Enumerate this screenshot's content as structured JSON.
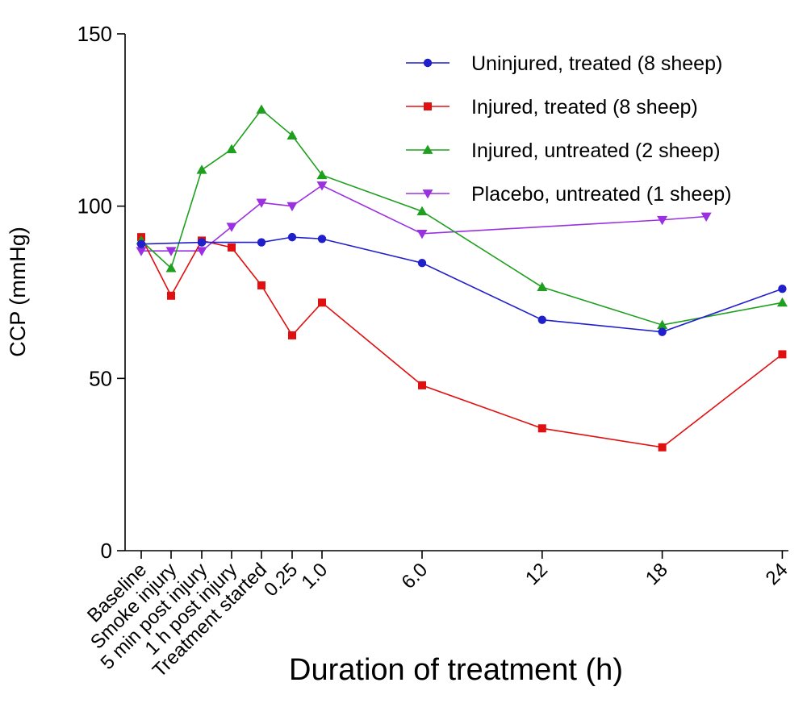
{
  "chart_data": {
    "type": "line",
    "xlabel": "Duration of treatment (h)",
    "ylabel": "CCP (mmHg)",
    "ylim": [
      0,
      150
    ],
    "yticks": [
      0,
      50,
      100,
      150
    ],
    "categories": [
      "Baseline",
      "Smoke injury",
      "5 min post injury",
      "1 h post injury",
      "Treatment started",
      "0.25",
      "1.0",
      "6.0",
      "12",
      "18",
      "24"
    ],
    "legend_position": "top-right",
    "grid": false,
    "series": [
      {
        "name": "Uninjured, treated (8 sheep)",
        "color": "#1f1fcc",
        "marker": "circle",
        "points": [
          {
            "x": "Baseline",
            "y": 89
          },
          {
            "x": "5 min post injury",
            "y": 89.5
          },
          {
            "x": "Treatment started",
            "y": 89.5
          },
          {
            "x": "0.25",
            "y": 91
          },
          {
            "x": "1.0",
            "y": 90.5
          },
          {
            "x": "6.0",
            "y": 83.5
          },
          {
            "x": "12",
            "y": 67
          },
          {
            "x": "18",
            "y": 63.5
          },
          {
            "x": "24",
            "y": 76
          }
        ]
      },
      {
        "name": "Injured, treated (8 sheep)",
        "color": "#e01010",
        "marker": "square",
        "points": [
          {
            "x": "Baseline",
            "y": 91
          },
          {
            "x": "Smoke injury",
            "y": 74
          },
          {
            "x": "5 min post injury",
            "y": 90
          },
          {
            "x": "1 h post injury",
            "y": 88
          },
          {
            "x": "Treatment started",
            "y": 77
          },
          {
            "x": "0.25",
            "y": 62.5
          },
          {
            "x": "1.0",
            "y": 72
          },
          {
            "x": "6.0",
            "y": 48
          },
          {
            "x": "12",
            "y": 35.5
          },
          {
            "x": "18",
            "y": 30
          },
          {
            "x": "24",
            "y": 57
          }
        ]
      },
      {
        "name": "Injured, untreated (2 sheep)",
        "color": "#1ea01e",
        "marker": "triangle-up",
        "points": [
          {
            "x": "Baseline",
            "y": 90
          },
          {
            "x": "Smoke injury",
            "y": 82
          },
          {
            "x": "5 min post injury",
            "y": 110.5
          },
          {
            "x": "1 h post injury",
            "y": 116.5
          },
          {
            "x": "Treatment started",
            "y": 128
          },
          {
            "x": "0.25",
            "y": 120.5
          },
          {
            "x": "1.0",
            "y": 109
          },
          {
            "x": "6.0",
            "y": 98.5
          },
          {
            "x": "12",
            "y": 76.5
          },
          {
            "x": "18",
            "y": 65.5
          },
          {
            "x": "24",
            "y": 72
          }
        ]
      },
      {
        "name": "Placebo, untreated (1 sheep)",
        "color": "#9b30e0",
        "marker": "triangle-down",
        "points": [
          {
            "x": "Baseline",
            "y": 87
          },
          {
            "x": "Smoke injury",
            "y": 87
          },
          {
            "x": "5 min post injury",
            "y": 87
          },
          {
            "x": "1 h post injury",
            "y": 94
          },
          {
            "x": "Treatment started",
            "y": 101
          },
          {
            "x": "0.25",
            "y": 100
          },
          {
            "x": "1.0",
            "y": 106
          },
          {
            "x": "6.0",
            "y": 92
          },
          {
            "x": "18",
            "y": 96
          },
          {
            "x": 20.2,
            "y": 97
          }
        ]
      }
    ]
  }
}
